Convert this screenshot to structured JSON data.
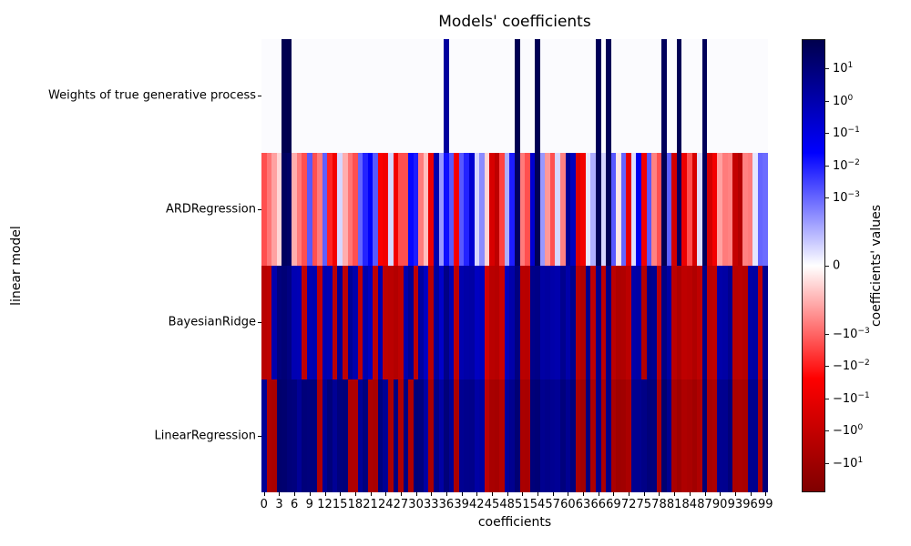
{
  "title": "Models' coefficients",
  "xlabel": "coefficients",
  "ylabel": "linear model",
  "colorbar": {
    "label": "coefficients' values",
    "ticks": [
      {
        "mantissa": "10",
        "exp": "1",
        "value": 10
      },
      {
        "mantissa": "10",
        "exp": "0",
        "value": 1
      },
      {
        "mantissa": "10",
        "exp": "−1",
        "value": 0.1
      },
      {
        "mantissa": "10",
        "exp": "−2",
        "value": 0.01
      },
      {
        "mantissa": "10",
        "exp": "−3",
        "value": 0.001
      },
      {
        "mantissa": "0",
        "exp": "",
        "value": 0
      },
      {
        "mantissa": "−10",
        "exp": "−3",
        "value": -0.001
      },
      {
        "mantissa": "−10",
        "exp": "−2",
        "value": -0.01
      },
      {
        "mantissa": "−10",
        "exp": "−1",
        "value": -0.1
      },
      {
        "mantissa": "−10",
        "exp": "0",
        "value": -1
      },
      {
        "mantissa": "−10",
        "exp": "1",
        "value": -10
      }
    ]
  },
  "x_tick_labels": [
    "0",
    "3",
    "6",
    "9",
    "12",
    "15",
    "18",
    "21",
    "24",
    "27",
    "30",
    "33",
    "36",
    "39",
    "42",
    "45",
    "48",
    "51",
    "54",
    "57",
    "60",
    "63",
    "66",
    "69",
    "72",
    "75",
    "78",
    "81",
    "84",
    "87",
    "90",
    "93",
    "96",
    "99"
  ],
  "chart_data": {
    "type": "heatmap",
    "title": "Models' coefficients",
    "xlabel": "coefficients",
    "ylabel": "linear model",
    "colormap": "seismic_r",
    "norm": {
      "type": "symlog",
      "linthresh": 0.0001,
      "vmin": -80,
      "vmax": 80
    },
    "columns_range": [
      0,
      99
    ],
    "series": [
      {
        "name": "Weights of true generative process",
        "values": [
          0,
          0,
          0,
          0,
          65,
          70,
          0,
          0,
          0,
          0,
          0,
          0,
          0,
          0,
          0,
          0,
          0,
          0,
          0,
          0,
          0,
          0,
          0,
          0,
          0,
          0,
          0,
          0,
          0,
          0,
          0,
          0,
          0,
          0,
          0,
          0,
          2,
          0,
          0,
          0,
          0,
          0,
          0,
          0,
          0,
          0,
          0,
          0,
          0,
          0,
          60,
          0,
          0,
          0,
          55,
          0,
          0,
          0,
          0,
          0,
          0,
          0,
          0,
          0,
          0,
          0,
          45,
          0,
          50,
          0,
          0,
          0,
          0,
          0,
          0,
          0,
          0,
          0,
          0,
          40,
          0,
          0,
          55,
          0,
          0,
          0,
          0,
          45,
          0,
          0,
          0,
          0,
          0,
          0,
          0,
          0,
          0,
          0,
          0,
          0
        ]
      },
      {
        "name": "ARDRegression",
        "values": [
          -0.002,
          -0.0006,
          -0.00015,
          -5e-05,
          35,
          25,
          -0.0001,
          -0.0005,
          -0.002,
          0.0015,
          -0.002,
          -0.0005,
          0.0012,
          -0.008,
          -0.05,
          5e-05,
          -0.0001,
          -0.0006,
          -0.002,
          0.001,
          0.008,
          0.03,
          0.0015,
          -0.03,
          -0.05,
          5e-05,
          -0.05,
          -0.002,
          -0.002,
          0.02,
          0.01,
          -0.0005,
          -8e-05,
          -0.08,
          1,
          0.0002,
          0.015,
          0.0015,
          -0.05,
          0.0015,
          0.008,
          0.2,
          5e-05,
          0.0003,
          -5e-05,
          -0.3,
          -1.5,
          -0.003,
          0.0001,
          0.01,
          30,
          -0.0005,
          -0.002,
          0.2,
          45,
          0.0002,
          -0.0002,
          -0.002,
          5e-05,
          -0.0004,
          3,
          0.5,
          -0.2,
          -0.05,
          3e-05,
          0.0001,
          50,
          5e-05,
          45,
          0.0015,
          -3e-05,
          0.001,
          -0.1,
          4e-05,
          0.05,
          -0.05,
          0.0015,
          -0.0004,
          -0.002,
          55,
          0.0012,
          -0.5,
          35,
          -0.08,
          -0.002,
          -0.3,
          4e-05,
          40,
          -0.4,
          -0.05,
          -0.00015,
          -0.0005,
          -0.0004,
          -1,
          -3,
          -0.0004,
          -0.0005,
          3e-05,
          0.001,
          0.0008
        ]
      },
      {
        "name": "BayesianRidge",
        "values": [
          -2,
          -1.5,
          1,
          9,
          12,
          7,
          0.8,
          0.7,
          -1.2,
          0.8,
          1,
          -1.5,
          0.9,
          0.8,
          -1.8,
          3,
          -1.5,
          3,
          1,
          -1.5,
          1,
          0.4,
          -1.5,
          1,
          -1.5,
          -1.8,
          -3,
          -1.5,
          1,
          3,
          -1.5,
          2,
          0.4,
          -2,
          2,
          0.3,
          6,
          0.8,
          -1.5,
          0.9,
          1.3,
          1.5,
          0.4,
          0.5,
          -0.4,
          -2,
          -2.5,
          -0.8,
          0.5,
          1.2,
          8,
          -2,
          -2.2,
          5,
          6,
          1.5,
          1.8,
          1.2,
          1,
          4,
          1.2,
          4,
          -2,
          -4,
          5,
          -1.5,
          5,
          -1.5,
          6,
          -1.8,
          -4,
          -3.5,
          -1.8,
          1.2,
          1.5,
          -2.5,
          5,
          4,
          -1.8,
          6,
          1.5,
          -1.8,
          -4,
          -1.5,
          -1.8,
          -3.5,
          -1.5,
          5,
          -1.8,
          -1.5,
          1.2,
          1.5,
          4,
          -2,
          -1.8,
          -2.5,
          1.2,
          1.5,
          -1.8,
          4
        ]
      },
      {
        "name": "LinearRegression",
        "values": [
          3,
          -4,
          -5,
          18,
          17,
          10,
          9,
          3,
          10,
          9,
          9,
          -4,
          3,
          10,
          3,
          9,
          10,
          -4,
          -4,
          3,
          9,
          -4,
          -5,
          9,
          3,
          -5,
          9,
          -4,
          9,
          -4,
          10,
          9,
          1.5,
          -6,
          6,
          1.5,
          10,
          3,
          -5,
          3.5,
          4.5,
          5,
          1.5,
          2,
          -1.5,
          -6,
          -7,
          -3,
          2,
          4,
          14,
          -5,
          -6,
          10,
          12,
          4,
          5,
          3.5,
          3,
          9,
          3.5,
          9,
          -5,
          -10,
          10,
          -4,
          5,
          -4,
          6,
          -5,
          -10,
          -9,
          -5,
          3.5,
          4,
          6,
          10,
          9,
          -5,
          15,
          4,
          -5,
          -10,
          -4,
          -5,
          -9,
          -4,
          12,
          -5,
          -4,
          3.5,
          4,
          10,
          -5,
          -4.5,
          -6,
          3.5,
          4,
          -5,
          10
        ]
      }
    ]
  }
}
